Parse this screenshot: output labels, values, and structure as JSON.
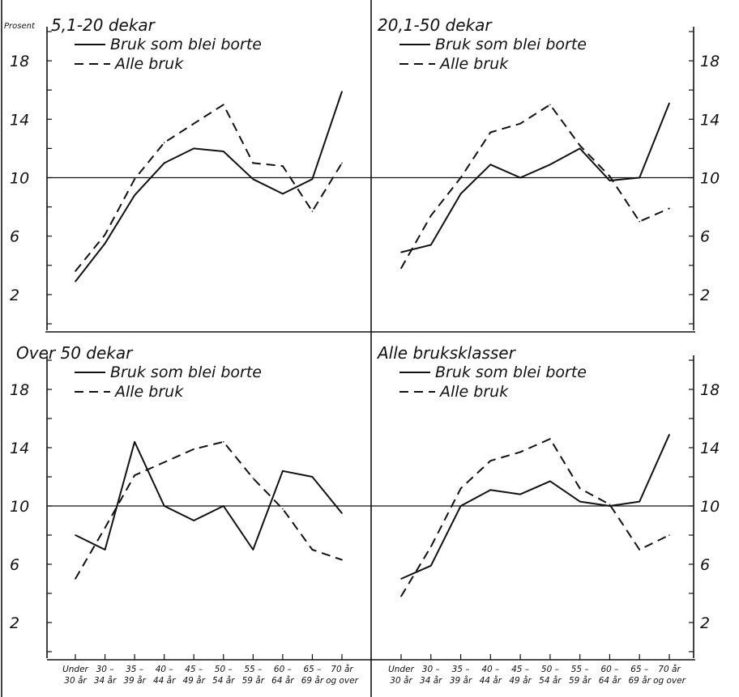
{
  "y_unit_label": "Prosent",
  "x_tick_labels": [
    [
      "Under",
      "30 år"
    ],
    [
      "30 –",
      "34 år"
    ],
    [
      "35 –",
      "39 år"
    ],
    [
      "40 –",
      "44 år"
    ],
    [
      "45 –",
      "49 år"
    ],
    [
      "50 –",
      "54 år"
    ],
    [
      "55 –",
      "59 år"
    ],
    [
      "60 –",
      "64 år"
    ],
    [
      "65 –",
      "69 år"
    ],
    [
      "70 år",
      "og over"
    ]
  ],
  "y_tick_labels": [
    "2",
    "6",
    "10",
    "14",
    "18"
  ],
  "chart_data": [
    {
      "type": "line",
      "title": "5,1-20 dekar",
      "categories": [
        "Under 30 år",
        "30 – 34 år",
        "35 – 39 år",
        "40 – 44 år",
        "45 – 49 år",
        "50 – 54 år",
        "55 – 59 år",
        "60 – 64 år",
        "65 – 69 år",
        "70 år og over"
      ],
      "series": [
        {
          "name": "Bruk som blei borte",
          "style": "solid",
          "values": [
            2.9,
            5.5,
            8.8,
            11.0,
            12.0,
            11.8,
            9.9,
            8.9,
            9.9,
            15.9
          ]
        },
        {
          "name": "Alle bruk",
          "style": "dashed",
          "values": [
            3.6,
            6.1,
            9.9,
            12.4,
            13.7,
            15.0,
            11.0,
            10.8,
            7.7,
            11.0
          ]
        }
      ],
      "ylim": [
        0,
        20
      ],
      "reference_line": 10,
      "grid": false,
      "legend": "top-left"
    },
    {
      "type": "line",
      "title": "20,1-50 dekar",
      "categories": [
        "Under 30 år",
        "30 – 34 år",
        "35 – 39 år",
        "40 – 44 år",
        "45 – 49 år",
        "50 – 54 år",
        "55 – 59 år",
        "60 – 64 år",
        "65 – 69 år",
        "70 år og over"
      ],
      "series": [
        {
          "name": "Bruk som blei borte",
          "style": "solid",
          "values": [
            4.9,
            5.4,
            8.9,
            10.9,
            10.0,
            10.9,
            12.0,
            9.8,
            10.0,
            15.1
          ]
        },
        {
          "name": "Alle bruk",
          "style": "dashed",
          "values": [
            3.8,
            7.4,
            10.0,
            13.1,
            13.7,
            15.0,
            12.2,
            10.1,
            7.0,
            7.9
          ]
        }
      ],
      "ylim": [
        0,
        20
      ],
      "reference_line": 10,
      "grid": false,
      "legend": "top-left"
    },
    {
      "type": "line",
      "title": "Over 50 dekar",
      "categories": [
        "Under 30 år",
        "30 – 34 år",
        "35 – 39 år",
        "40 – 44 år",
        "45 – 49 år",
        "50 – 54 år",
        "55 – 59 år",
        "60 – 64 år",
        "65 – 69 år",
        "70 år og over"
      ],
      "series": [
        {
          "name": "Bruk som blei borte",
          "style": "solid",
          "values": [
            8.0,
            7.0,
            14.4,
            10.0,
            9.0,
            10.0,
            7.0,
            12.4,
            12.0,
            9.5
          ]
        },
        {
          "name": "Alle bruk",
          "style": "dashed",
          "values": [
            5.0,
            8.5,
            12.1,
            13.0,
            13.9,
            14.4,
            11.9,
            9.8,
            7.0,
            6.3
          ]
        }
      ],
      "ylim": [
        0,
        20
      ],
      "reference_line": 10,
      "grid": false,
      "legend": "top-left"
    },
    {
      "type": "line",
      "title": "Alle bruksklasser",
      "categories": [
        "Under 30 år",
        "30 – 34 år",
        "35 – 39 år",
        "40 – 44 år",
        "45 – 49 år",
        "50 – 54 år",
        "55 – 59 år",
        "60 – 64 år",
        "65 – 69 år",
        "70 år og over"
      ],
      "series": [
        {
          "name": "Bruk som blei borte",
          "style": "solid",
          "values": [
            5.0,
            5.9,
            10.0,
            11.1,
            10.8,
            11.7,
            10.3,
            10.0,
            10.3,
            14.9
          ]
        },
        {
          "name": "Alle bruk",
          "style": "dashed",
          "values": [
            3.8,
            7.2,
            11.2,
            13.1,
            13.7,
            14.6,
            11.2,
            10.1,
            7.0,
            8.0
          ]
        }
      ],
      "ylim": [
        0,
        20
      ],
      "reference_line": 10,
      "grid": false,
      "legend": "top-left"
    }
  ]
}
